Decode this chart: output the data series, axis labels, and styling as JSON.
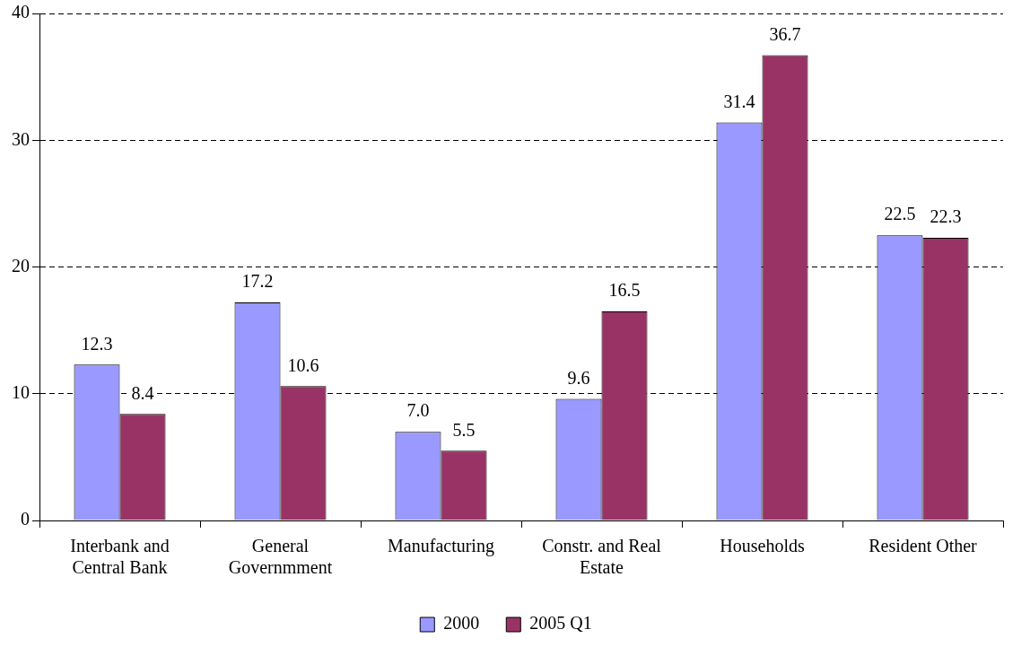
{
  "chart_data": {
    "type": "bar",
    "categories": [
      "Interbank and Central Bank",
      "General Governmment",
      "Manufacturing",
      "Constr. and Real Estate",
      "Households",
      "Resident Other"
    ],
    "series": [
      {
        "name": "2000",
        "color": "#9999ff",
        "values": [
          12.3,
          17.2,
          7.0,
          9.6,
          31.4,
          22.5
        ],
        "value_labels": [
          "12.3",
          "17.2",
          "7.0",
          "9.6",
          "31.4",
          "22.5"
        ]
      },
      {
        "name": "2005 Q1",
        "color": "#993366",
        "values": [
          8.4,
          10.6,
          5.5,
          16.5,
          36.7,
          22.3
        ],
        "value_labels": [
          "8.4",
          "10.6",
          "5.5",
          "16.5",
          "36.7",
          "22.3"
        ]
      }
    ],
    "ylim": [
      0,
      40
    ],
    "yticks": [
      0,
      10,
      20,
      30,
      40
    ],
    "grid": "y",
    "legend": "bottom"
  }
}
